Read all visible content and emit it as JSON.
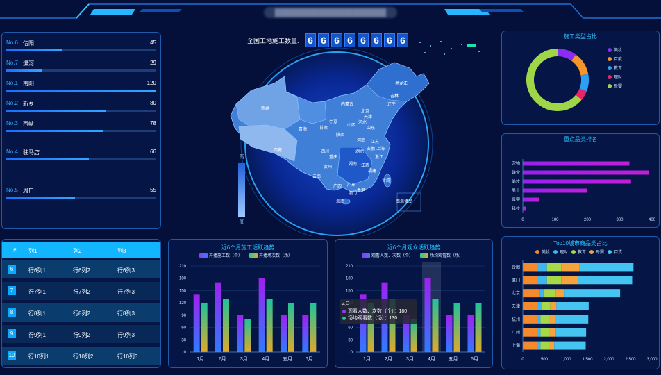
{
  "header": {
    "title_blurred": "▓▓▓▓▓▓▓▓▓▓▓▓▓▓▓▓▓▓▓▓"
  },
  "ranking": [
    {
      "no": "No.6",
      "name": "信阳",
      "value": "45",
      "fraction": 0.375
    },
    {
      "no": "No.7",
      "name": "漯河",
      "value": "29",
      "fraction": 0.24
    },
    {
      "no": "No.1",
      "name": "南阳",
      "value": "120",
      "fraction": 1.0
    },
    {
      "no": "No.2",
      "name": "新乡",
      "value": "80",
      "fraction": 0.667
    },
    {
      "no": "No.3",
      "name": "西峡",
      "value": "78",
      "fraction": 0.65
    },
    {
      "no": "No.4",
      "name": "驻马店",
      "value": "66",
      "fraction": 0.55
    },
    {
      "no": "No.5",
      "name": "周口",
      "value": "55",
      "fraction": 0.46
    }
  ],
  "table": {
    "headers": [
      "#",
      "列1",
      "列2",
      "列3"
    ],
    "rows": [
      {
        "idx": "6",
        "c1": "行6列1",
        "c2": "行6列2",
        "c3": "行6列3"
      },
      {
        "idx": "7",
        "c1": "行7列1",
        "c2": "行7列2",
        "c3": "行7列3"
      },
      {
        "idx": "8",
        "c1": "行8列1",
        "c2": "行8列2",
        "c3": "行8列3"
      },
      {
        "idx": "9",
        "c1": "行9列1",
        "c2": "行9列2",
        "c3": "行9列3"
      },
      {
        "idx": "10",
        "c1": "行10列1",
        "c2": "行10列2",
        "c3": "行10列3"
      }
    ]
  },
  "counter": {
    "label": "全国工地施工数量:",
    "digits": [
      "6",
      "6",
      "6",
      "6",
      "6",
      "6",
      "6",
      "6"
    ]
  },
  "map": {
    "legend_high": "高",
    "legend_low": "低",
    "provinces": [
      "新疆",
      "西藏",
      "青海",
      "甘肃",
      "内蒙古",
      "黑龙江",
      "吉林",
      "辽宁",
      "宁夏",
      "陕西",
      "山西",
      "北京",
      "天津",
      "河北",
      "山东",
      "河南",
      "江苏",
      "安徽",
      "上海",
      "浙江",
      "四川",
      "重庆",
      "湖北",
      "湖南",
      "江西",
      "福建",
      "贵州",
      "云南",
      "广西",
      "广东",
      "台湾",
      "香港",
      "澳门",
      "海南",
      "南海诸岛"
    ]
  },
  "chart_data": [
    {
      "type": "bar",
      "title": "近6个月施工活跃趋势",
      "categories": [
        "1月",
        "2月",
        "3月",
        "4月",
        "五月",
        "6月"
      ],
      "series": [
        {
          "name": "开播施工数（个）",
          "values": [
            140,
            170,
            90,
            180,
            90,
            90
          ]
        },
        {
          "name": "开播场次数（场）",
          "values": [
            120,
            130,
            80,
            130,
            120,
            120
          ]
        }
      ],
      "ylim": [
        0,
        210
      ],
      "yticks": [
        0,
        30,
        60,
        90,
        120,
        150,
        180,
        210
      ]
    },
    {
      "type": "bar",
      "title": "近6个月观众活跃趋势",
      "categories": [
        "1月",
        "2月",
        "3月",
        "4月",
        "五月",
        "6月"
      ],
      "series": [
        {
          "name": "观看人数、次数（个）",
          "values": [
            140,
            170,
            90,
            180,
            90,
            90
          ]
        },
        {
          "name": "场均观看数（场）",
          "values": [
            120,
            130,
            80,
            130,
            120,
            120
          ]
        }
      ],
      "ylim": [
        0,
        210
      ],
      "yticks": [
        0,
        30,
        60,
        90,
        120,
        150,
        180,
        210
      ],
      "tooltip": {
        "title": "4月",
        "lines": [
          "观看人数、次数（个）：180",
          "场均观看数（场）：130"
        ]
      }
    },
    {
      "type": "pie",
      "title": "施工类型占比",
      "categories": [
        "美妆",
        "百度",
        "教育",
        "理财",
        "母婴"
      ],
      "values": [
        10,
        12,
        9,
        5,
        64
      ],
      "colors": [
        "#8b2cf5",
        "#f5952c",
        "#2ca0f5",
        "#e8256b",
        "#9ed648"
      ]
    },
    {
      "type": "bar",
      "title": "重点品类排名",
      "categories": [
        "宠物",
        "珠宝",
        "美妆",
        "男士",
        "母婴",
        "科技"
      ],
      "values": [
        330,
        390,
        335,
        200,
        50,
        10
      ],
      "xlim": [
        0,
        400
      ],
      "xticks": [
        0,
        100,
        200,
        300,
        400
      ]
    },
    {
      "type": "bar",
      "title": "Top10城市商品类占比",
      "categories": [
        "合肥",
        "厦门",
        "北京",
        "天津",
        "杭州",
        "广州",
        "上海"
      ],
      "series": [
        {
          "name": "美妆",
          "values": [
            330,
            330,
            400,
            330,
            330,
            330,
            330
          ]
        },
        {
          "name": "理财",
          "values": [
            230,
            230,
            80,
            110,
            80,
            80,
            80
          ]
        },
        {
          "name": "教育",
          "values": [
            330,
            330,
            290,
            200,
            190,
            200,
            200
          ]
        },
        {
          "name": "母婴",
          "values": [
            430,
            400,
            200,
            140,
            150,
            150,
            120
          ]
        },
        {
          "name": "百货",
          "values": [
            1250,
            1250,
            1290,
            750,
            770,
            710,
            730
          ]
        }
      ],
      "colors": [
        "#f58a2c",
        "#3fb6f0",
        "#a6d84a",
        "#f5a33c",
        "#45c4f2"
      ],
      "xlim": [
        0,
        3000
      ],
      "xticks": [
        "0",
        "500",
        "1,000",
        "1,500",
        "2,000",
        "2,500",
        "3,000"
      ]
    }
  ]
}
